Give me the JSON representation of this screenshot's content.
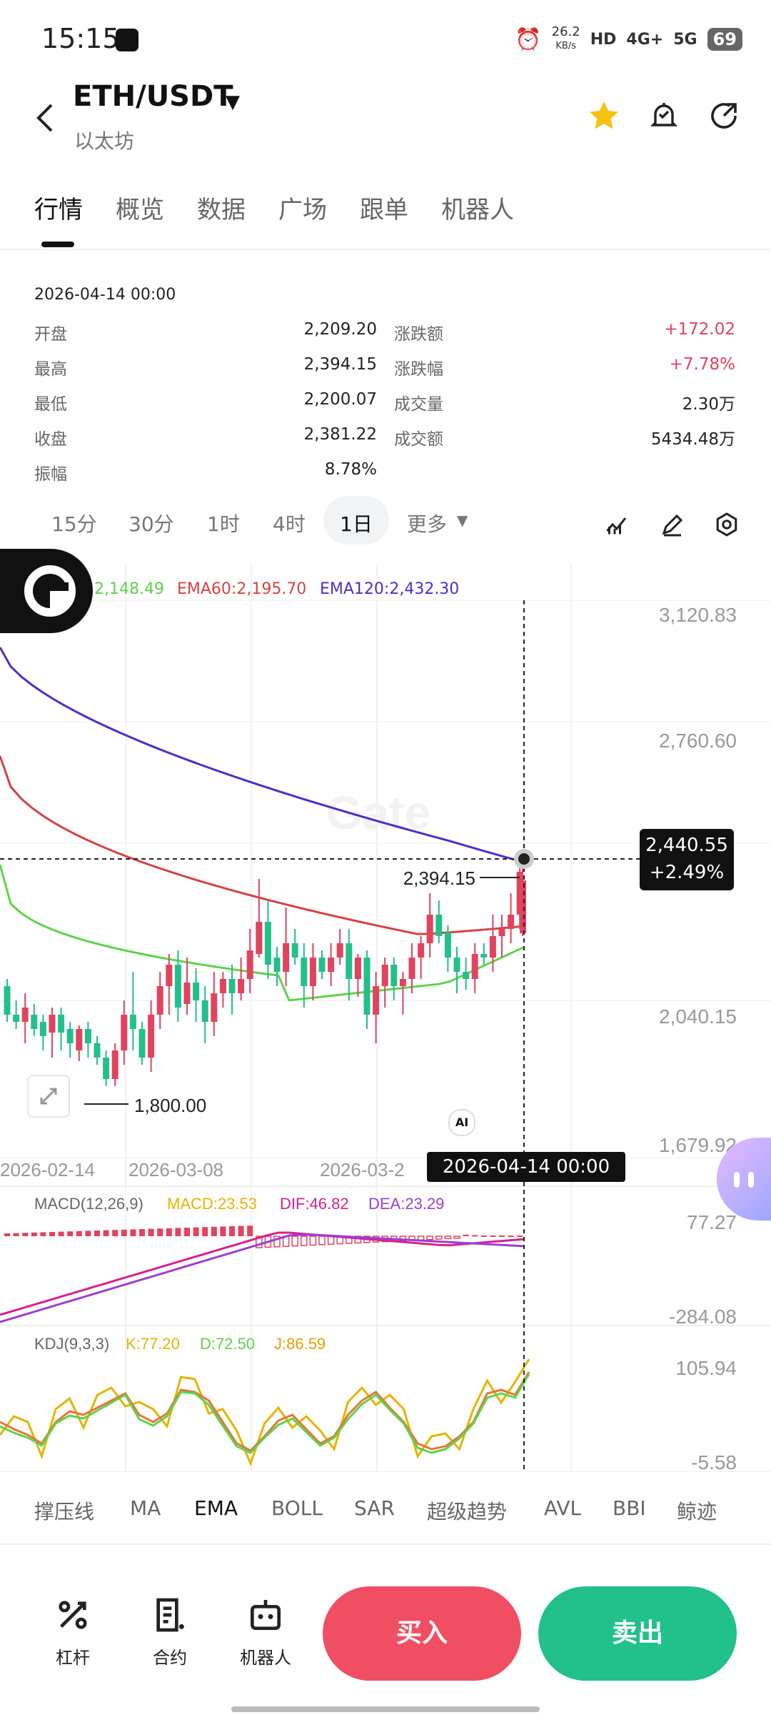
{
  "status_bar": {
    "time": "15:15",
    "net_speed": "26.2",
    "net_unit": "KB/s",
    "hd": "HD",
    "net1": "4G+",
    "net2": "5G",
    "battery": "69"
  },
  "header": {
    "pair": "ETH/USDT",
    "name": "以太坊"
  },
  "tabs": [
    "行情",
    "概览",
    "数据",
    "广场",
    "跟单",
    "机器人"
  ],
  "stats": {
    "date": "2026-04-14 00:00",
    "left": [
      {
        "label": "开盘",
        "value": "2,209.20"
      },
      {
        "label": "最高",
        "value": "2,394.15"
      },
      {
        "label": "最低",
        "value": "2,200.07"
      },
      {
        "label": "收盘",
        "value": "2,381.22"
      },
      {
        "label": "振幅",
        "value": "8.78%"
      }
    ],
    "right": [
      {
        "label": "涨跌额",
        "value": "+172.02"
      },
      {
        "label": "涨跌幅",
        "value": "+7.78%"
      },
      {
        "label": "成交量",
        "value": "2.30万"
      },
      {
        "label": "成交额",
        "value": "5434.48万"
      }
    ]
  },
  "timeframes": [
    "15分",
    "30分",
    "1时",
    "4时",
    "1日",
    "更多"
  ],
  "chart_legend": {
    "ema20": "2,148.49",
    "ema60": "EMA60:2,195.70",
    "ema120": "EMA120:2,432.30"
  },
  "chart_labels": {
    "y_ticks": [
      "3,120.83",
      "2,760.60",
      "2,040.15",
      "1,679.92"
    ],
    "x_ticks": [
      "2026-02-14",
      "2026-03-08",
      "2026-03-2"
    ],
    "high_label": "2,394.15",
    "low_label": "1,800.00",
    "price_badge": "2,440.55",
    "price_change": "+2.49%",
    "crosshair_date": "2026-04-14 00:00",
    "watermark": "Gate",
    "ai": "AI"
  },
  "macd": {
    "title": "MACD(12,26,9)",
    "macd": "MACD:23.53",
    "dif": "DIF:46.82",
    "dea": "DEA:23.29",
    "top": "77.27",
    "bottom": "-284.08"
  },
  "kdj": {
    "title": "KDJ(9,3,3)",
    "k": "K:77.20",
    "d": "D:72.50",
    "j": "J:86.59",
    "top": "105.94",
    "bottom": "-5.58"
  },
  "indicators": [
    "撑压线",
    "MA",
    "EMA",
    "BOLL",
    "SAR",
    "超级趋势",
    "AVL",
    "BBI",
    "鲸迹"
  ],
  "bottom": {
    "leverage": "杠杆",
    "contract": "合约",
    "robot": "机器人",
    "buy": "买入",
    "sell": "卖出"
  },
  "colors": {
    "up": "#e2435e",
    "down": "#22c08a",
    "ema20": "#5ed44a",
    "ema60": "#d94141",
    "ema120": "#4b2fc9",
    "macd": "#e8b300",
    "dif": "#d9208a",
    "dea": "#9b3fd4"
  }
}
